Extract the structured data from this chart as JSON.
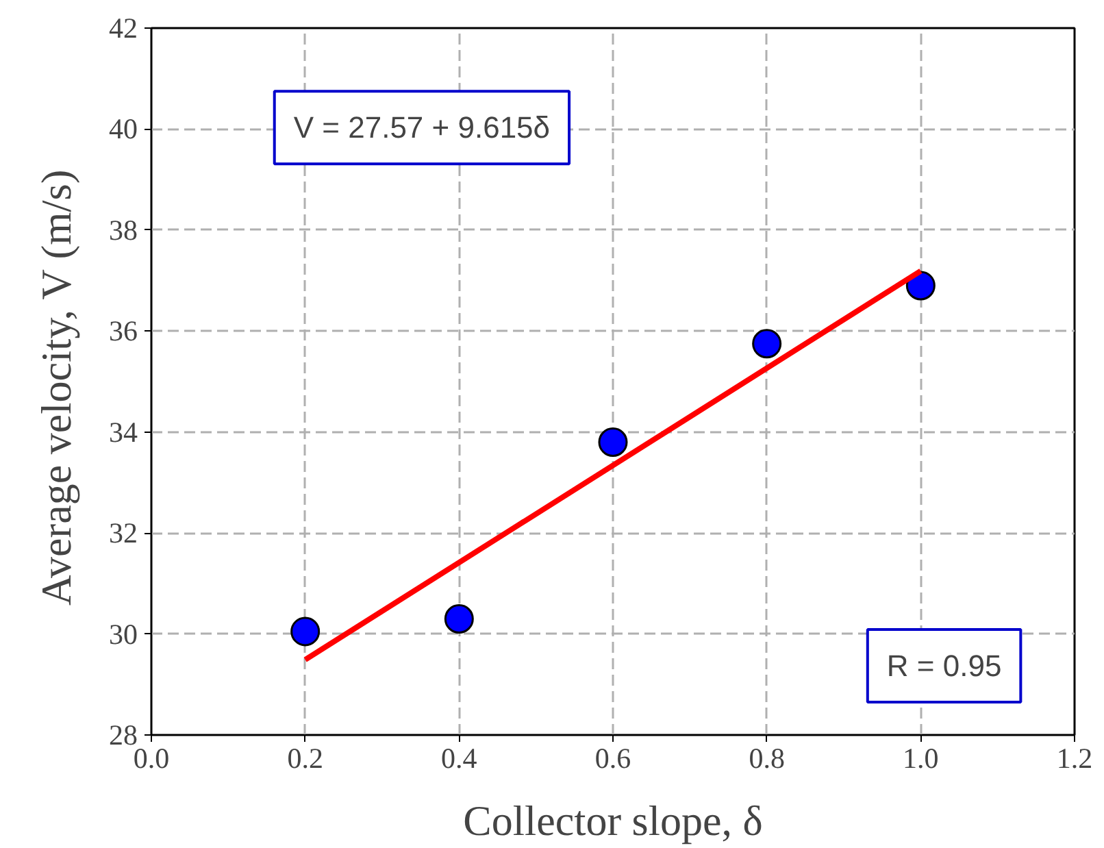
{
  "chart_data": {
    "type": "scatter",
    "xlabel": "Collector slope, δ",
    "ylabel": "Average velocity,  V (m/s)",
    "xlim": [
      0.0,
      1.2
    ],
    "ylim": [
      28,
      42
    ],
    "xticks": [
      {
        "value": 0.0,
        "label": "0.0"
      },
      {
        "value": 0.2,
        "label": "0.2"
      },
      {
        "value": 0.4,
        "label": "0.4"
      },
      {
        "value": 0.6,
        "label": "0.6"
      },
      {
        "value": 0.8,
        "label": "0.8"
      },
      {
        "value": 1.0,
        "label": "1.0"
      },
      {
        "value": 1.2,
        "label": "1.2"
      }
    ],
    "yticks": [
      28,
      30,
      32,
      34,
      36,
      38,
      40,
      42
    ],
    "grid": true,
    "marker": "circle",
    "series": [
      {
        "color": "#0000ff",
        "x": [
          0.2,
          0.4,
          0.6,
          0.8,
          1.0
        ],
        "values": [
          30.05,
          30.3,
          33.8,
          35.75,
          36.9
        ]
      },
      {
        "type": "line",
        "color": "#ff0000",
        "line_style": "solid",
        "marker": "none",
        "x": [
          0.2,
          1.0
        ],
        "values": [
          29.49,
          37.19
        ]
      }
    ],
    "annotations": [
      "V = 27.57 + 9.615δ",
      "R = 0.95"
    ]
  }
}
